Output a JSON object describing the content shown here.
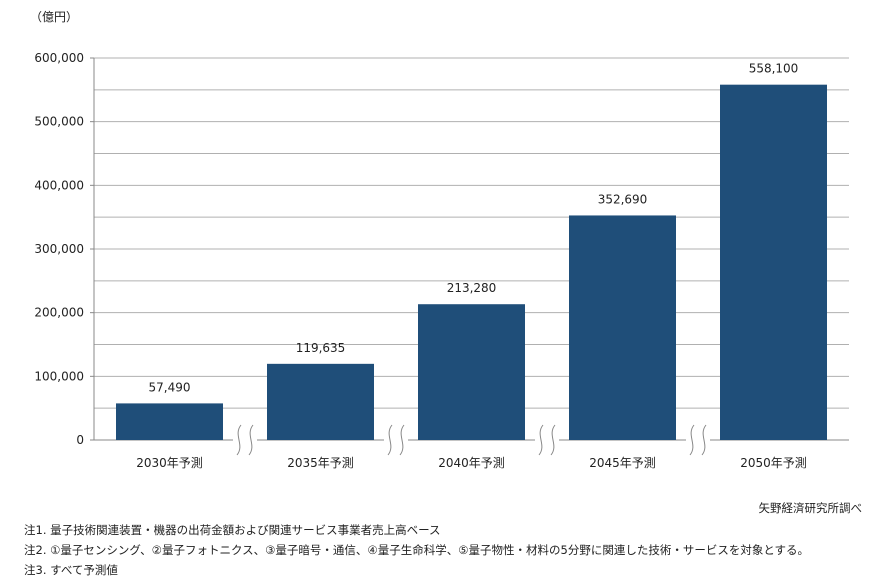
{
  "chart_data": {
    "type": "bar",
    "unit_label": "（億円）",
    "categories": [
      "2030年予測",
      "2035年予測",
      "2040年予測",
      "2045年予測",
      "2050年予測"
    ],
    "values": [
      57490,
      119635,
      213280,
      352690,
      558100
    ],
    "data_labels": [
      "57,490",
      "119,635",
      "213,280",
      "352,690",
      "558,100"
    ],
    "ylim": [
      0,
      600000
    ],
    "yticks": [
      "0",
      "100,000",
      "200,000",
      "300,000",
      "400,000",
      "500,000",
      "600,000"
    ],
    "grid": true,
    "axis_breaks": true,
    "bar_color": "#1f4e79",
    "grid_color": "#b0b0b0"
  },
  "source": "矢野経済研究所調べ",
  "notes": [
    "注1. 量子技術関連装置・機器の出荷金額および関連サービス事業者売上高ベース",
    "注2. ①量子センシング、②量子フォトニクス、③量子暗号・通信、④量子生命科学、⑤量子物性・材料の5分野に関連した技術・サービスを対象とする。",
    "注3. すべて予測値"
  ]
}
